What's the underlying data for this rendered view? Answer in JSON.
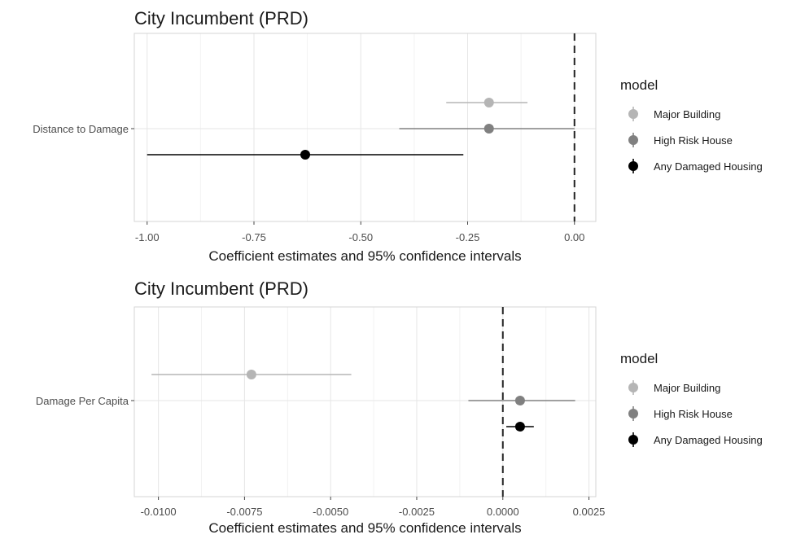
{
  "chart_data": [
    {
      "type": "scatter",
      "title": "City Incumbent (PRD)",
      "xlabel": "Coefficient estimates and 95% confidence intervals",
      "ylabel": "",
      "categories": [
        "Distance to Damage"
      ],
      "xlim": [
        -1.03,
        0.05
      ],
      "xticks": [
        -1.0,
        -0.75,
        -0.5,
        -0.25,
        0.0
      ],
      "xtick_labels": [
        "-1.00",
        "-0.75",
        "-0.50",
        "-0.25",
        "0.00"
      ],
      "reference_line": 0.0,
      "grid": true,
      "legend_position": "right",
      "legend_title": "model",
      "series": [
        {
          "name": "Major Building",
          "color": "#b5b5b5",
          "estimate": -0.2,
          "ci_low": -0.3,
          "ci_high": -0.11
        },
        {
          "name": "High Risk House",
          "color": "#808080",
          "estimate": -0.2,
          "ci_low": -0.41,
          "ci_high": 0.0
        },
        {
          "name": "Any Damaged Housing",
          "color": "#000000",
          "estimate": -0.63,
          "ci_low": -1.0,
          "ci_high": -0.26
        }
      ]
    },
    {
      "type": "scatter",
      "title": "City Incumbent (PRD)",
      "xlabel": "Coefficient estimates and 95% confidence intervals",
      "ylabel": "",
      "categories": [
        "Damage Per Capita"
      ],
      "xlim": [
        -0.0107,
        0.0027
      ],
      "xticks": [
        -0.01,
        -0.0075,
        -0.005,
        -0.0025,
        0.0,
        0.0025
      ],
      "xtick_labels": [
        "-0.0100",
        "-0.0075",
        "-0.0050",
        "-0.0025",
        "0.0000",
        "0.0025"
      ],
      "reference_line": 0.0,
      "grid": true,
      "legend_position": "right",
      "legend_title": "model",
      "series": [
        {
          "name": "Major Building",
          "color": "#b5b5b5",
          "estimate": -0.0073,
          "ci_low": -0.0102,
          "ci_high": -0.0044
        },
        {
          "name": "High Risk House",
          "color": "#808080",
          "estimate": 0.0005,
          "ci_low": -0.001,
          "ci_high": 0.0021
        },
        {
          "name": "Any Damaged Housing",
          "color": "#000000",
          "estimate": 0.0005,
          "ci_low": 0.0001,
          "ci_high": 0.0009
        }
      ]
    }
  ]
}
